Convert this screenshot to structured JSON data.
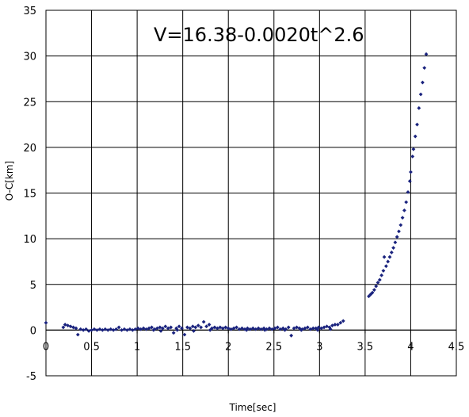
{
  "chart_data": {
    "type": "scatter",
    "title": "",
    "annotation": "V=16.38-0.0020t^2.6",
    "xlabel": "Time[sec]",
    "ylabel": "O-C[km]",
    "xlim": [
      0,
      4.5
    ],
    "ylim": [
      -5,
      35
    ],
    "xticks": [
      "0",
      "0.5",
      "1",
      "1.5",
      "2",
      "2.5",
      "3",
      "3.5",
      "4",
      "4.5"
    ],
    "xtick_values": [
      0,
      0.5,
      1,
      1.5,
      2,
      2.5,
      3,
      3.5,
      4,
      4.5
    ],
    "yticks": [
      "-5",
      "0",
      "5",
      "10",
      "15",
      "20",
      "25",
      "30",
      "35"
    ],
    "ytick_values": [
      -5,
      0,
      5,
      10,
      15,
      20,
      25,
      30,
      35
    ],
    "grid": true,
    "legend": "none",
    "marker_color": "#1a237e",
    "series": [
      {
        "points": [
          [
            0.0,
            0.8
          ],
          [
            0.19,
            0.3
          ],
          [
            0.21,
            0.6
          ],
          [
            0.24,
            0.5
          ],
          [
            0.27,
            0.4
          ],
          [
            0.3,
            0.3
          ],
          [
            0.33,
            0.2
          ],
          [
            0.35,
            -0.5
          ],
          [
            0.38,
            0.1
          ],
          [
            0.41,
            0.0
          ],
          [
            0.44,
            0.1
          ],
          [
            0.47,
            -0.1
          ],
          [
            0.5,
            0.0
          ],
          [
            0.53,
            0.1
          ],
          [
            0.56,
            0.0
          ],
          [
            0.59,
            0.1
          ],
          [
            0.62,
            0.0
          ],
          [
            0.65,
            0.1
          ],
          [
            0.68,
            0.0
          ],
          [
            0.71,
            0.1
          ],
          [
            0.74,
            0.0
          ],
          [
            0.77,
            0.1
          ],
          [
            0.8,
            0.3
          ],
          [
            0.83,
            0.0
          ],
          [
            0.86,
            0.1
          ],
          [
            0.89,
            0.0
          ],
          [
            0.92,
            0.1
          ],
          [
            0.95,
            0.0
          ],
          [
            0.98,
            0.1
          ],
          [
            1.01,
            0.2
          ],
          [
            1.04,
            0.1
          ],
          [
            1.07,
            0.2
          ],
          [
            1.1,
            0.1
          ],
          [
            1.13,
            0.2
          ],
          [
            1.16,
            0.3
          ],
          [
            1.19,
            0.1
          ],
          [
            1.22,
            0.2
          ],
          [
            1.25,
            0.3
          ],
          [
            1.28,
            0.2
          ],
          [
            1.31,
            0.4
          ],
          [
            1.34,
            0.2
          ],
          [
            1.37,
            0.3
          ],
          [
            1.4,
            -0.3
          ],
          [
            1.43,
            0.2
          ],
          [
            1.46,
            0.4
          ],
          [
            1.49,
            0.2
          ],
          [
            1.52,
            -0.5
          ],
          [
            1.55,
            0.3
          ],
          [
            1.58,
            0.2
          ],
          [
            1.61,
            0.4
          ],
          [
            1.64,
            0.3
          ],
          [
            1.67,
            0.5
          ],
          [
            1.7,
            0.3
          ],
          [
            1.73,
            0.9
          ],
          [
            1.76,
            0.4
          ],
          [
            1.79,
            0.6
          ],
          [
            1.82,
            0.2
          ],
          [
            1.85,
            0.3
          ],
          [
            1.88,
            0.2
          ],
          [
            1.91,
            0.3
          ],
          [
            1.94,
            0.2
          ],
          [
            1.97,
            0.3
          ],
          [
            2.0,
            0.2
          ],
          [
            2.03,
            0.1
          ],
          [
            2.06,
            0.2
          ],
          [
            2.09,
            0.3
          ],
          [
            2.12,
            0.1
          ],
          [
            2.15,
            0.2
          ],
          [
            2.18,
            0.1
          ],
          [
            2.21,
            0.2
          ],
          [
            2.24,
            0.1
          ],
          [
            2.27,
            0.2
          ],
          [
            2.3,
            0.1
          ],
          [
            2.33,
            0.2
          ],
          [
            2.36,
            0.1
          ],
          [
            2.39,
            0.2
          ],
          [
            2.42,
            0.1
          ],
          [
            2.45,
            0.2
          ],
          [
            2.48,
            0.1
          ],
          [
            2.51,
            0.2
          ],
          [
            2.54,
            0.3
          ],
          [
            2.57,
            0.1
          ],
          [
            2.6,
            0.2
          ],
          [
            2.63,
            0.1
          ],
          [
            2.66,
            0.3
          ],
          [
            2.69,
            -0.6
          ],
          [
            2.72,
            0.2
          ],
          [
            2.75,
            0.3
          ],
          [
            2.78,
            0.2
          ],
          [
            2.81,
            0.1
          ],
          [
            2.84,
            0.2
          ],
          [
            2.87,
            0.3
          ],
          [
            2.9,
            0.1
          ],
          [
            2.93,
            0.2
          ],
          [
            2.96,
            0.2
          ],
          [
            2.99,
            0.3
          ],
          [
            3.02,
            0.2
          ],
          [
            3.05,
            0.3
          ],
          [
            3.08,
            0.4
          ],
          [
            3.11,
            0.3
          ],
          [
            3.14,
            0.5
          ],
          [
            3.17,
            0.6
          ],
          [
            3.2,
            0.6
          ],
          [
            3.23,
            0.8
          ],
          [
            3.26,
            1.0
          ],
          [
            1.18,
            0.0
          ],
          [
            1.26,
            -0.1
          ],
          [
            1.44,
            0.0
          ],
          [
            1.62,
            -0.1
          ],
          [
            1.8,
            0.0
          ],
          [
            2.2,
            0.0
          ],
          [
            2.4,
            0.0
          ],
          [
            2.62,
            0.0
          ],
          [
            2.8,
            0.0
          ],
          [
            2.98,
            0.0
          ],
          [
            3.12,
            0.1
          ],
          [
            3.54,
            3.7
          ],
          [
            3.56,
            3.9
          ],
          [
            3.58,
            4.1
          ],
          [
            3.6,
            4.4
          ],
          [
            3.62,
            4.8
          ],
          [
            3.64,
            5.2
          ],
          [
            3.66,
            5.5
          ],
          [
            3.68,
            6.0
          ],
          [
            3.7,
            6.5
          ],
          [
            3.71,
            8.0
          ],
          [
            3.73,
            7.0
          ],
          [
            3.75,
            7.5
          ],
          [
            3.77,
            8.0
          ],
          [
            3.79,
            8.5
          ],
          [
            3.81,
            9.0
          ],
          [
            3.83,
            9.6
          ],
          [
            3.85,
            10.2
          ],
          [
            3.87,
            10.8
          ],
          [
            3.89,
            11.5
          ],
          [
            3.91,
            12.3
          ],
          [
            3.93,
            13.1
          ],
          [
            3.95,
            14.0
          ],
          [
            3.97,
            15.1
          ],
          [
            3.99,
            16.3
          ],
          [
            4.0,
            17.3
          ],
          [
            4.02,
            19.0
          ],
          [
            4.03,
            19.8
          ],
          [
            4.05,
            21.2
          ],
          [
            4.07,
            22.5
          ],
          [
            4.09,
            24.3
          ],
          [
            4.11,
            25.8
          ],
          [
            4.13,
            27.1
          ],
          [
            4.15,
            28.7
          ],
          [
            4.17,
            30.2
          ]
        ]
      }
    ]
  }
}
